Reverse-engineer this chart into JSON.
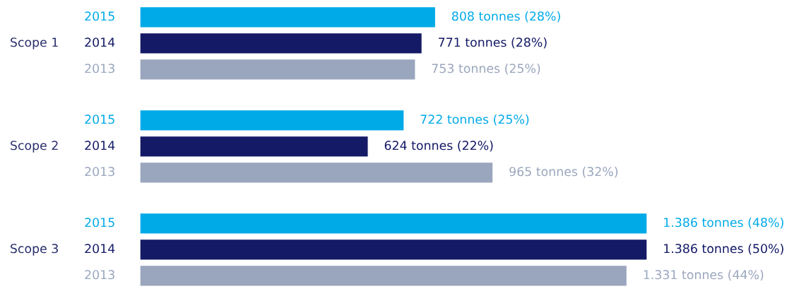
{
  "chart_data": {
    "type": "bar",
    "orientation": "horizontal",
    "categories": [
      "Scope 1",
      "Scope 2",
      "Scope 3"
    ],
    "series": [
      {
        "name": "2015",
        "color": "#00aae7",
        "values": [
          808,
          722,
          1386
        ],
        "value_labels": [
          "808 tonnes (28%)",
          "722 tonnes (25%)",
          "1.386 tonnes (48%)"
        ]
      },
      {
        "name": "2014",
        "color": "#141a66",
        "values": [
          771,
          624,
          1386
        ],
        "value_labels": [
          "771 tonnes (28%)",
          "624 tonnes (22%)",
          "1.386 tonnes (50%)"
        ]
      },
      {
        "name": "2013",
        "color": "#9aa6bd",
        "values": [
          753,
          965,
          1331
        ],
        "value_labels": [
          "753 tonnes (25%)",
          "965 tonnes (32%)",
          "1.331 tonnes (44%)"
        ]
      }
    ],
    "legend": false
  }
}
